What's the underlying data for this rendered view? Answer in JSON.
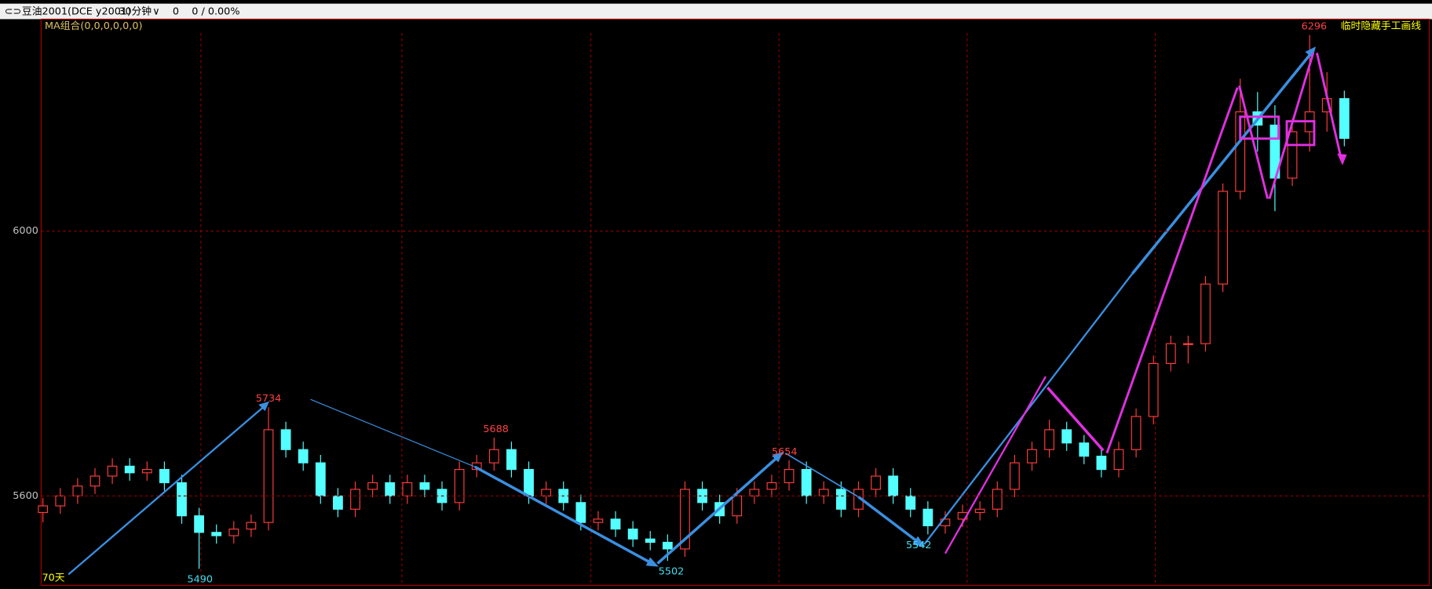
{
  "header": {
    "symbol": "豆油2001(DCE y2001)",
    "period": "30分钟",
    "volume": "0",
    "change": "0 / 0.00%"
  },
  "chart_data": {
    "type": "candlestick",
    "indicator": "MA组合(0,0,0,0,0,0)",
    "toggle": "临时隐藏手工画线",
    "span": "70天",
    "up_color": "#ff3c3c",
    "down_color": "#54ffff",
    "ylim": [
      5465,
      6320
    ],
    "yticks": [
      5600,
      6000
    ],
    "grid": true,
    "open": [
      5575,
      5585,
      5600,
      5615,
      5630,
      5645,
      5635,
      5640,
      5620,
      5570,
      5545,
      5540,
      5550,
      5560,
      5700,
      5670,
      5650,
      5600,
      5580,
      5610,
      5620,
      5600,
      5620,
      5610,
      5590,
      5640,
      5650,
      5670,
      5640,
      5600,
      5610,
      5590,
      5560,
      5565,
      5550,
      5535,
      5530,
      5520,
      5610,
      5590,
      5570,
      5600,
      5610,
      5620,
      5640,
      5600,
      5610,
      5580,
      5610,
      5630,
      5600,
      5580,
      5555,
      5565,
      5575,
      5580,
      5610,
      5650,
      5670,
      5700,
      5680,
      5660,
      5640,
      5670,
      5720,
      5800,
      5830,
      5830,
      5920,
      6060,
      6180,
      6160,
      6080,
      6150,
      6180,
      6200
    ],
    "high": [
      5597,
      5612,
      5627,
      5642,
      5657,
      5657,
      5652,
      5652,
      5632,
      5582,
      5557,
      5562,
      5572,
      5734,
      5712,
      5682,
      5662,
      5612,
      5622,
      5632,
      5632,
      5632,
      5632,
      5622,
      5652,
      5662,
      5688,
      5682,
      5652,
      5622,
      5622,
      5602,
      5577,
      5577,
      5562,
      5547,
      5542,
      5622,
      5622,
      5602,
      5612,
      5622,
      5632,
      5654,
      5652,
      5622,
      5622,
      5622,
      5642,
      5642,
      5612,
      5592,
      5577,
      5587,
      5592,
      5622,
      5662,
      5682,
      5715,
      5712,
      5692,
      5672,
      5682,
      5732,
      5812,
      5842,
      5842,
      5932,
      6072,
      6230,
      6210,
      6190,
      6170,
      6296,
      6240,
      6212
    ],
    "low": [
      5560,
      5573,
      5588,
      5603,
      5618,
      5623,
      5623,
      5608,
      5558,
      5490,
      5528,
      5528,
      5538,
      5548,
      5658,
      5638,
      5588,
      5568,
      5568,
      5598,
      5588,
      5588,
      5598,
      5578,
      5578,
      5628,
      5638,
      5628,
      5588,
      5588,
      5578,
      5548,
      5548,
      5538,
      5523,
      5518,
      5502,
      5508,
      5578,
      5558,
      5558,
      5588,
      5598,
      5608,
      5588,
      5588,
      5568,
      5568,
      5598,
      5588,
      5568,
      5542,
      5543,
      5553,
      5563,
      5568,
      5598,
      5638,
      5658,
      5668,
      5648,
      5628,
      5628,
      5658,
      5708,
      5788,
      5800,
      5818,
      5908,
      6048,
      6120,
      6030,
      6068,
      6120,
      6150,
      6128
    ],
    "close": [
      5585,
      5600,
      5615,
      5630,
      5645,
      5635,
      5640,
      5620,
      5570,
      5545,
      5540,
      5550,
      5560,
      5700,
      5670,
      5650,
      5600,
      5580,
      5610,
      5620,
      5600,
      5620,
      5610,
      5590,
      5640,
      5650,
      5670,
      5640,
      5600,
      5610,
      5590,
      5560,
      5565,
      5550,
      5535,
      5530,
      5520,
      5610,
      5590,
      5570,
      5600,
      5610,
      5620,
      5640,
      5600,
      5610,
      5580,
      5610,
      5630,
      5600,
      5580,
      5555,
      5565,
      5575,
      5580,
      5610,
      5650,
      5670,
      5700,
      5680,
      5660,
      5640,
      5670,
      5720,
      5800,
      5830,
      5830,
      5920,
      6060,
      6180,
      6160,
      6080,
      6150,
      6180,
      6200,
      6140
    ],
    "peak_labels": [
      5734,
      5688,
      5654,
      6296
    ],
    "trough_labels": [
      5490,
      5502,
      5542
    ]
  }
}
